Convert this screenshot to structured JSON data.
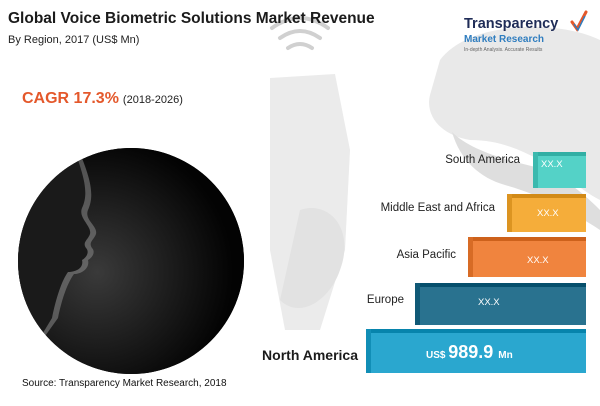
{
  "header": {
    "title": "Global Voice Biometric Solutions Market Revenue",
    "subtitle": "By Region, 2017 (US$ Mn)"
  },
  "cagr": {
    "label": "CAGR 17.3%",
    "period": "(2018-2026)"
  },
  "brand": {
    "name_line1": "Transparency",
    "name_line2": "Market Research",
    "tagline": "In-depth Analysis. Accurate Results"
  },
  "source": "Source: Transparency Market Research, 2018",
  "colors": {
    "north_america": "#2aa7cf",
    "europe": "#29728f",
    "asia_pacific": "#f0843e",
    "middle_east_africa": "#f5ad3a",
    "south_america": "#54d2c7",
    "cagr": "#e4582b"
  },
  "icons": [
    "voice-waveform-icon",
    "head-silhouette-icon",
    "phone-icon",
    "signal-icon",
    "checkmark-icon"
  ],
  "chart_data": {
    "type": "bar",
    "orientation": "horizontal",
    "layout": "stepped",
    "categories": [
      "North America",
      "Europe",
      "Asia Pacific",
      "Middle East and Africa",
      "South America"
    ],
    "value_labels": [
      "US$ 989.9 Mn",
      "XX.X",
      "XX.X",
      "XX.X",
      "XX.X"
    ],
    "values": [
      989.9,
      null,
      null,
      null,
      null
    ],
    "unit": "US$ Mn"
  }
}
